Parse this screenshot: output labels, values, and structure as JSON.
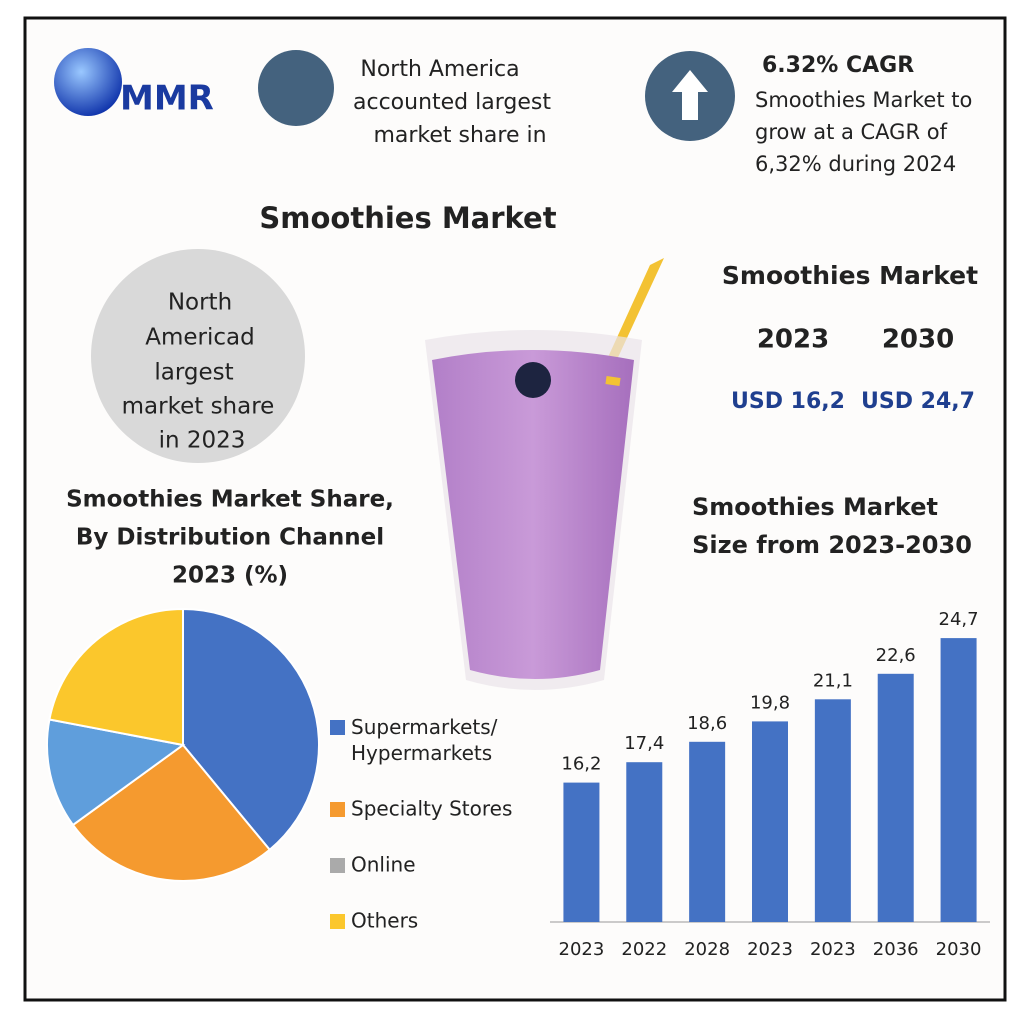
{
  "logo": "MMR",
  "header_left": [
    "North America",
    "accounted largest",
    "market share in"
  ],
  "header_right": {
    "title": "6.32% CAGR",
    "lines": [
      "Smoothies Market to",
      "grow at a CAGR of",
      "6,32% during 2024"
    ]
  },
  "title": "Smoothies Market",
  "circle_text": [
    "North",
    "Americad",
    "largest",
    "market share",
    "in 2023"
  ],
  "market_box": {
    "title": "Smoothies Market",
    "years": [
      "2023",
      "2030"
    ],
    "values": [
      "USD 16,2",
      "USD 24,7"
    ]
  },
  "chart_data": [
    {
      "type": "pie",
      "title": [
        "Smoothies Market Share,",
        "By Distribution Channel",
        "2023 (%)"
      ],
      "categories": [
        "Supermarkets/\nHypermarkets",
        "Specialty Stores",
        "Online",
        "Others"
      ],
      "values": [
        39,
        26,
        13,
        22
      ],
      "colors": [
        "#4472c4",
        "#f59a2f",
        "#5f9edc",
        "#fbc72c"
      ],
      "legend_colors": [
        "#4472c4",
        "#f59a2f",
        "#aaaaaa",
        "#fbc72c"
      ]
    },
    {
      "type": "bar",
      "title": [
        "Smoothies Market",
        "Size from 2023-2030"
      ],
      "categories": [
        "2023",
        "2022",
        "2028",
        "2023",
        "2023",
        "2036",
        "2030"
      ],
      "values": [
        16.2,
        17.4,
        18.6,
        19.8,
        21.1,
        22.6,
        24.7
      ],
      "value_labels": [
        "16,2",
        "17,4",
        "18,6",
        "19,8",
        "21,1",
        "22,6",
        "24,7"
      ],
      "color": "#4472c4",
      "ylim": [
        8,
        25
      ]
    }
  ]
}
